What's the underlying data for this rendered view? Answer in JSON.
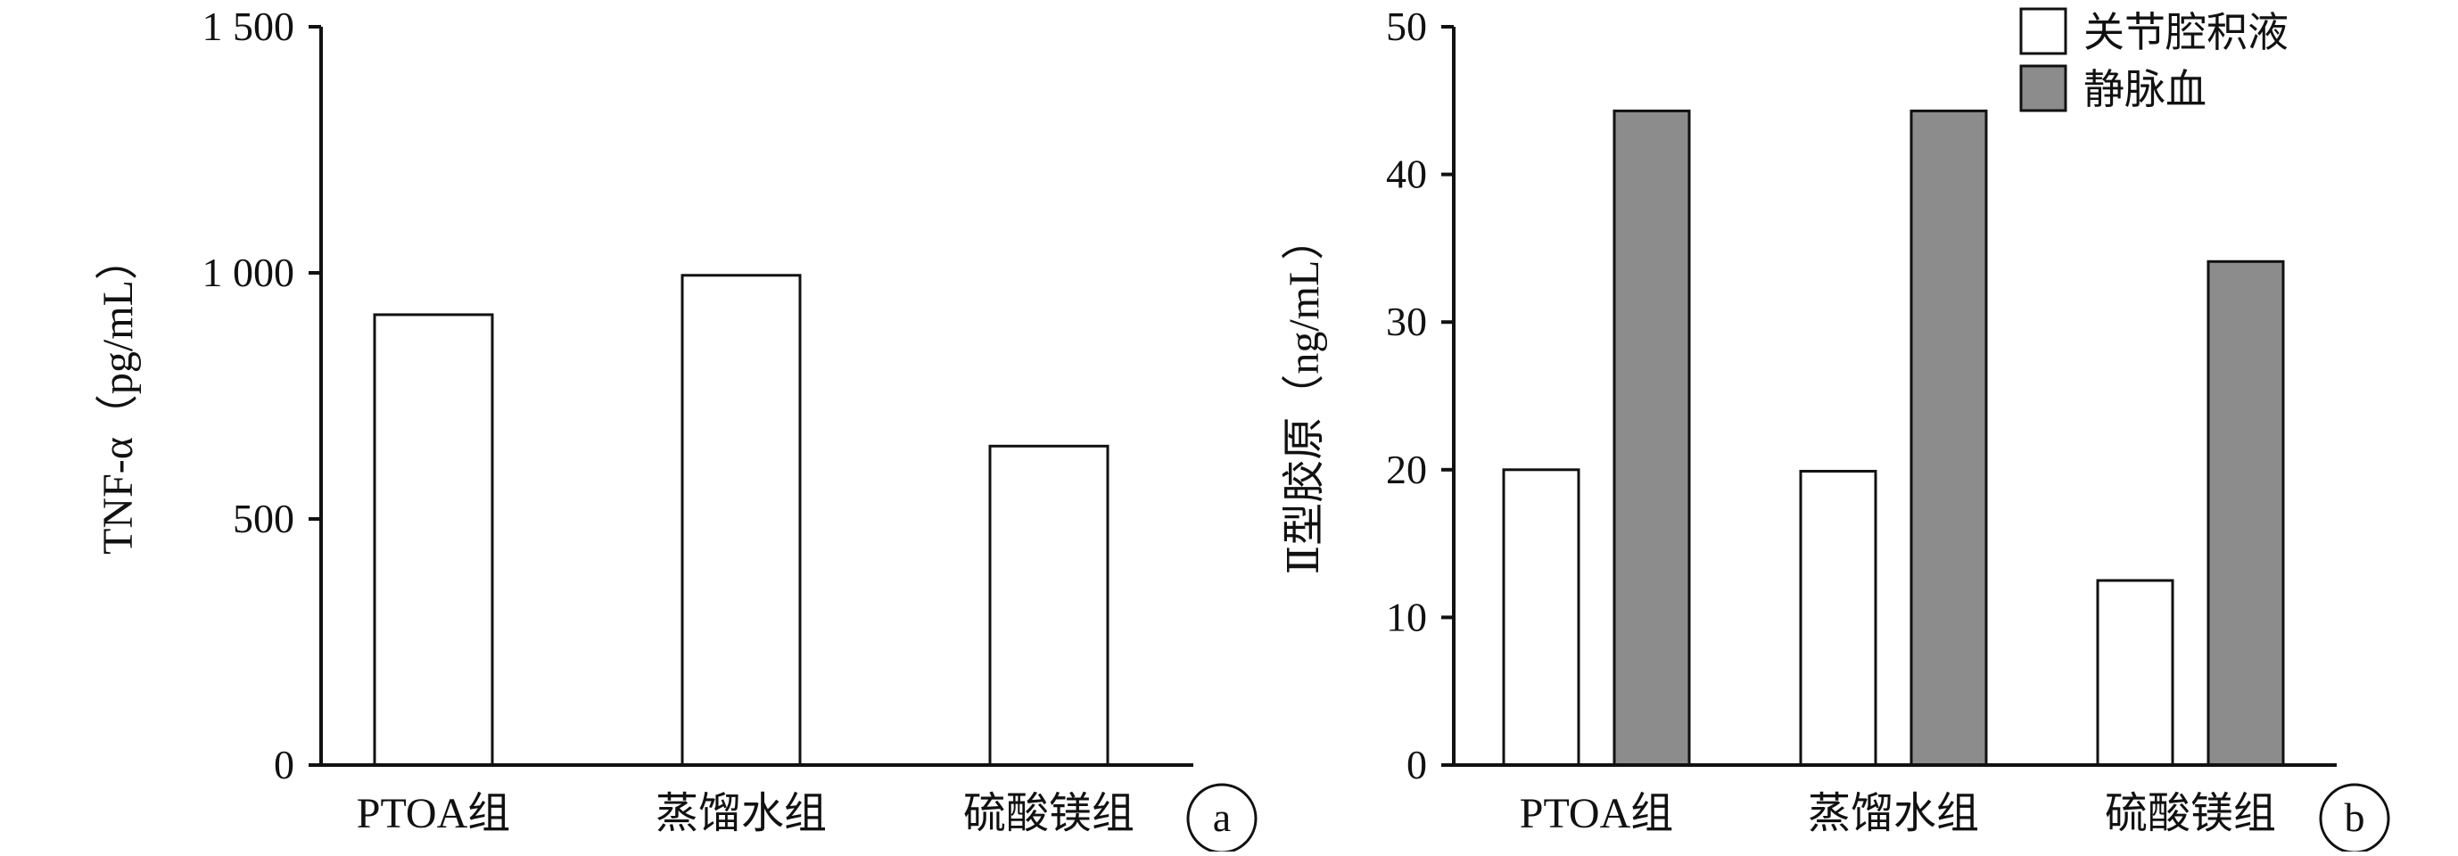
{
  "chart_data": [
    {
      "type": "bar",
      "panel_label": "a",
      "ylabel": "TNF-α（pg/mL）",
      "categories": [
        "PTOA组",
        "蒸馏水组",
        "硫酸镁组"
      ],
      "series": [
        {
          "values": [
            915,
            995,
            648
          ],
          "color": "#ffffff"
        }
      ],
      "ylim": [
        0,
        1500
      ],
      "yticks": [
        0,
        500,
        1000,
        1500
      ],
      "ytick_labels": [
        "0",
        "500",
        "1 000",
        "1 500"
      ],
      "grid": false,
      "legend": "none"
    },
    {
      "type": "bar",
      "panel_label": "b",
      "ylabel": "Ⅱ型胶原（ng/mL）",
      "categories": [
        "PTOA组",
        "蒸馏水组",
        "硫酸镁组"
      ],
      "series": [
        {
          "name": "关节腔积液",
          "values": [
            20.0,
            19.9,
            12.5
          ],
          "color": "#ffffff"
        },
        {
          "name": "静脉血",
          "values": [
            44.3,
            44.3,
            34.1
          ],
          "color": "#8c8c8c"
        }
      ],
      "ylim": [
        0,
        50
      ],
      "yticks": [
        0,
        10,
        20,
        30,
        40,
        50
      ],
      "ytick_labels": [
        "0",
        "10",
        "20",
        "30",
        "40",
        "50"
      ],
      "grid": false,
      "legend": "top-right"
    }
  ]
}
